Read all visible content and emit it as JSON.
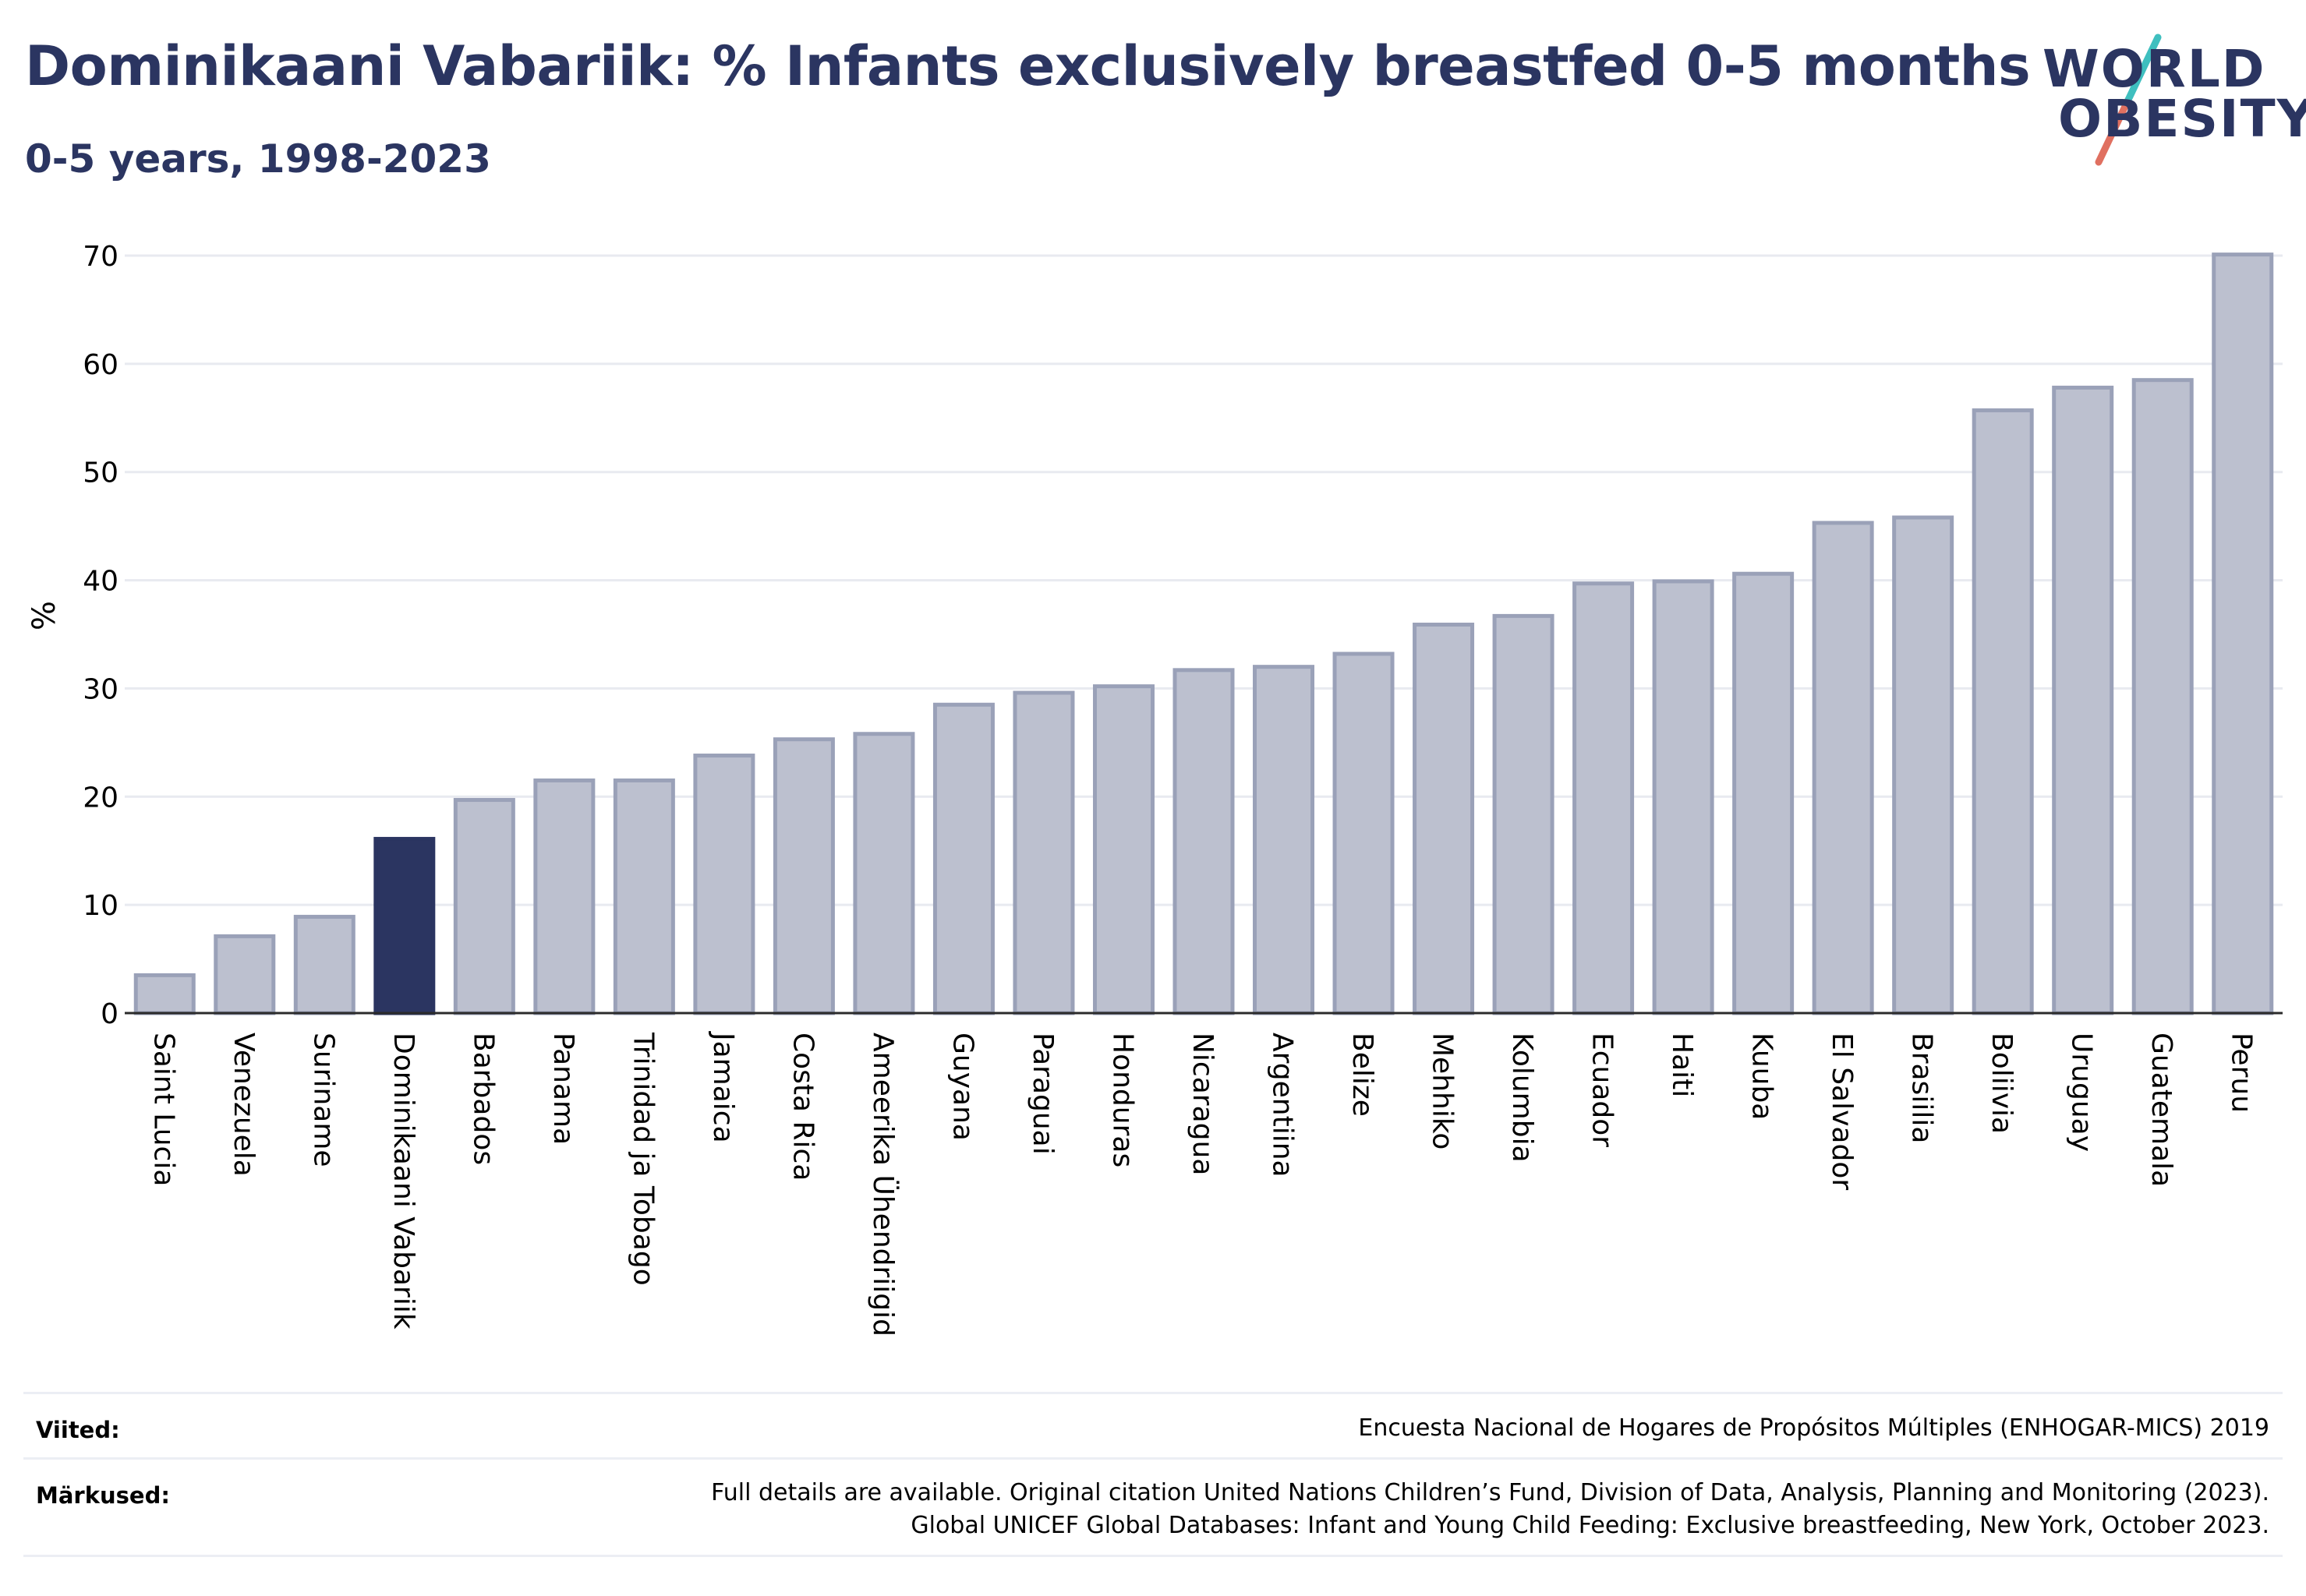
{
  "title": "Dominikaani Vabariik: % Infants exclusively breastfed 0-5 months",
  "subtitle": "0-5 years, 1998-2023",
  "logo": {
    "line1": "WORLD",
    "line2": "OBESITY"
  },
  "colors": {
    "highlight": "#2b3561",
    "bar": "#bcc0cf",
    "bar_stroke": "#9aa1b8",
    "grid": "#e8eaf0",
    "text": "#2b3561"
  },
  "chart_data": {
    "type": "bar",
    "ylabel": "%",
    "ylim": [
      0,
      70
    ],
    "yticks": [
      0,
      10,
      20,
      30,
      40,
      50,
      60,
      70
    ],
    "highlight": "Dominikaani Vabariik",
    "grid": true,
    "categories": [
      "Saint Lucia",
      "Venezuela",
      "Suriname",
      "Dominikaani Vabariik",
      "Barbados",
      "Panama",
      "Trinidad ja Tobago",
      "Jamaica",
      "Costa Rica",
      "Ameerika Ühendriigid",
      "Guyana",
      "Paraguai",
      "Honduras",
      "Nicaragua",
      "Argentiina",
      "Belize",
      "Mehhiko",
      "Kolumbia",
      "Ecuador",
      "Haiti",
      "Kuuba",
      "El Salvador",
      "Brasiilia",
      "Boliivia",
      "Uruguay",
      "Guatemala",
      "Peruu"
    ],
    "values": [
      3.5,
      7.1,
      8.9,
      16.1,
      19.7,
      21.5,
      21.5,
      23.8,
      25.3,
      25.8,
      28.5,
      29.6,
      30.2,
      31.7,
      32.0,
      33.2,
      35.9,
      36.7,
      39.7,
      39.9,
      40.6,
      45.3,
      45.8,
      55.7,
      57.8,
      58.5,
      70.1
    ]
  },
  "footer": {
    "sources_label": "Viited:",
    "sources_text": "Encuesta Nacional de Hogares de Propósitos Múltiples (ENHOGAR-MICS) 2019",
    "notes_label": "Märkused:",
    "notes_line1": "Full details are available. Original citation United Nations Children’s Fund, Division of Data, Analysis, Planning and Monitoring (2023).",
    "notes_line2": "Global UNICEF Global Databases: Infant and Young Child Feeding: Exclusive breastfeeding, New York, October 2023."
  }
}
